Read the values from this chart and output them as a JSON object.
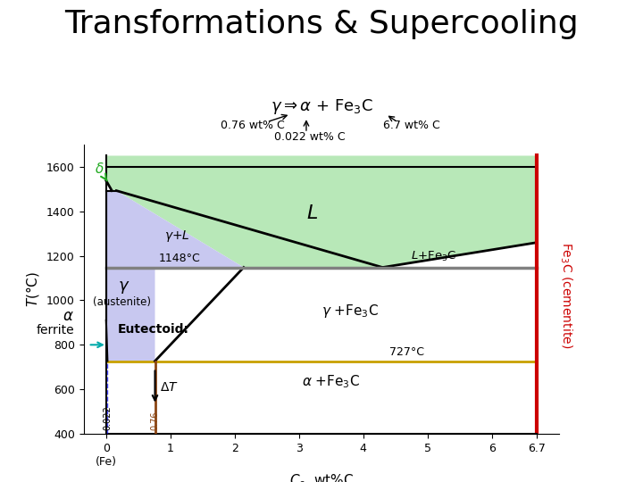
{
  "title": "Transformations & Supercooling",
  "title_fontsize": 26,
  "xlabel": "$C_o$, wt%C",
  "ylabel_left": "$T$(°C)",
  "xmin": 0,
  "xmax": 6.7,
  "ymin": 400,
  "ymax": 1650,
  "bg_color": "#ffffff",
  "liquid_color": "#b8e8b8",
  "austenite_color": "#c8c8f0",
  "eutectic_line_color": "#808080",
  "eutectoid_line_color": "#c8a000",
  "cementite_right_color": "#cc0000",
  "delta_arrow_color": "#22aa22",
  "ferrite_arrow_color": "#00aaaa",
  "brown_color": "#8B4513"
}
